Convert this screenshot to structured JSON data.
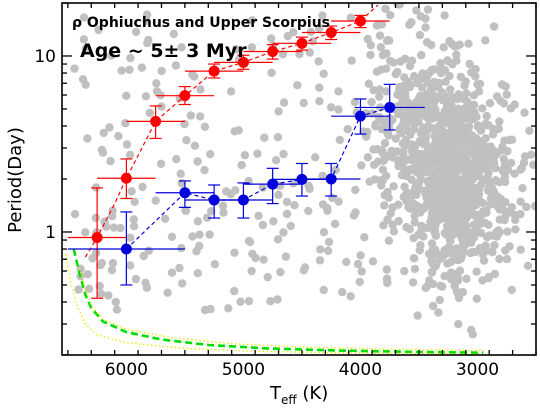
{
  "chart_data": {
    "type": "scatter",
    "title_line1": "ρ Ophiuchus and Upper Scorpius",
    "title_line2": "Age ~ 5± 3 Myr",
    "xlabel_main": "T",
    "xlabel_sub": "eff",
    "xlabel_unit": " (K)",
    "ylabel": "Period(Day)",
    "x_axis": {
      "reversed": true,
      "xlim": [
        6550,
        2500
      ],
      "ticks": [
        6000,
        5000,
        4000,
        3000
      ],
      "tick_labels": [
        "6000",
        "5000",
        "4000",
        "3000"
      ]
    },
    "y_axis": {
      "scale": "log",
      "ylim": [
        0.2,
        20
      ],
      "ticks": [
        1,
        10
      ],
      "tick_labels": [
        "1",
        "10"
      ]
    },
    "colors": {
      "background_points": "#c0c0c0",
      "red_series": "#ff0000",
      "blue_series": "#0000dd",
      "green_curve": "#00dd00",
      "yellow_curve": "#e8e800",
      "frame": "#000000"
    },
    "series": [
      {
        "key": "red",
        "points": [
          {
            "x": 6250,
            "y": 0.93,
            "xerr": 250,
            "ylo": 0.42,
            "yhi": 1.78
          },
          {
            "x": 6000,
            "y": 2.02,
            "xerr": 250,
            "ylo": 1.55,
            "yhi": 2.6
          },
          {
            "x": 5750,
            "y": 4.25,
            "xerr": 250,
            "ylo": 3.4,
            "yhi": 5.2
          },
          {
            "x": 5500,
            "y": 5.95,
            "xerr": 250,
            "ylo": 5.3,
            "yhi": 6.7
          },
          {
            "x": 5250,
            "y": 8.2,
            "xerr": 250,
            "ylo": 7.5,
            "yhi": 9.0
          },
          {
            "x": 5000,
            "y": 9.2,
            "xerr": 250,
            "ylo": 8.4,
            "yhi": 10.1
          },
          {
            "x": 4750,
            "y": 10.6,
            "xerr": 250,
            "ylo": 9.6,
            "yhi": 11.6
          },
          {
            "x": 4500,
            "y": 11.8,
            "xerr": 250,
            "ylo": 10.8,
            "yhi": 12.8
          },
          {
            "x": 4250,
            "y": 13.6,
            "xerr": 250,
            "ylo": 12.4,
            "yhi": 14.8
          },
          {
            "x": 4000,
            "y": 15.8,
            "xerr": 250,
            "ylo": 14.5,
            "yhi": 17.0
          }
        ],
        "trend": [
          [
            6350,
            0.72
          ],
          [
            6250,
            0.93
          ],
          [
            6100,
            1.45
          ],
          [
            6000,
            2.02
          ],
          [
            5750,
            4.25
          ],
          [
            5500,
            5.95
          ],
          [
            5250,
            8.2
          ],
          [
            5000,
            9.2
          ],
          [
            4750,
            10.6
          ],
          [
            4500,
            11.8
          ],
          [
            4250,
            13.6
          ],
          [
            4000,
            15.8
          ],
          [
            3850,
            19.5
          ]
        ]
      },
      {
        "key": "blue",
        "points": [
          {
            "x": 6000,
            "y": 0.8,
            "xerr": 500,
            "ylo": 0.5,
            "yhi": 1.3
          },
          {
            "x": 5500,
            "y": 1.67,
            "xerr": 250,
            "ylo": 1.38,
            "yhi": 1.95
          },
          {
            "x": 5250,
            "y": 1.52,
            "xerr": 250,
            "ylo": 1.2,
            "yhi": 1.85
          },
          {
            "x": 5000,
            "y": 1.52,
            "xerr": 250,
            "ylo": 1.2,
            "yhi": 1.9
          },
          {
            "x": 4750,
            "y": 1.87,
            "xerr": 250,
            "ylo": 1.45,
            "yhi": 2.3
          },
          {
            "x": 4500,
            "y": 1.99,
            "xerr": 250,
            "ylo": 1.6,
            "yhi": 2.45
          },
          {
            "x": 4250,
            "y": 2.0,
            "xerr": 250,
            "ylo": 1.6,
            "yhi": 2.45
          },
          {
            "x": 4000,
            "y": 4.55,
            "xerr": 250,
            "ylo": 3.6,
            "yhi": 5.7
          },
          {
            "x": 3750,
            "y": 5.1,
            "xerr": 300,
            "ylo": 3.8,
            "yhi": 6.9
          }
        ]
      }
    ],
    "model_curves": [
      {
        "key": "green-dashed",
        "points": [
          [
            6450,
            0.8
          ],
          [
            6400,
            0.58
          ],
          [
            6350,
            0.44
          ],
          [
            6300,
            0.37
          ],
          [
            6200,
            0.31
          ],
          [
            6000,
            0.27
          ],
          [
            5700,
            0.245
          ],
          [
            5300,
            0.228
          ],
          [
            4800,
            0.218
          ],
          [
            4200,
            0.212
          ],
          [
            3500,
            0.208
          ],
          [
            2950,
            0.206
          ]
        ]
      },
      {
        "key": "yellow-dotted-upper",
        "points": [
          [
            6400,
            0.62
          ],
          [
            6350,
            0.47
          ],
          [
            6300,
            0.38
          ],
          [
            6200,
            0.32
          ],
          [
            6000,
            0.28
          ],
          [
            5600,
            0.25
          ],
          [
            5100,
            0.232
          ],
          [
            4500,
            0.222
          ],
          [
            3800,
            0.216
          ],
          [
            2950,
            0.212
          ]
        ]
      },
      {
        "key": "yellow-dotted-lower",
        "points": [
          [
            6520,
            0.75
          ],
          [
            6470,
            0.5
          ],
          [
            6420,
            0.38
          ],
          [
            6350,
            0.3
          ],
          [
            6250,
            0.26
          ],
          [
            6000,
            0.235
          ],
          [
            5500,
            0.218
          ],
          [
            4800,
            0.209
          ],
          [
            4000,
            0.205
          ],
          [
            2950,
            0.202
          ]
        ]
      }
    ],
    "background_scatter": {
      "n_points": 1300,
      "components": [
        {
          "weight": 0.55,
          "x_mean": 3250,
          "x_sd": 170,
          "logy_mean": 0.36,
          "logy_sd": 0.32
        },
        {
          "weight": 0.12,
          "x_mean": 3650,
          "x_sd": 170,
          "logy_mean": 0.55,
          "logy_sd": 0.33
        },
        {
          "weight": 0.13,
          "x_mean": 2900,
          "x_sd": 170,
          "logy_mean": 0.25,
          "logy_sd": 0.28
        },
        {
          "weight": 0.2,
          "x_min": 3700,
          "x_max": 6450,
          "logy_min": -0.45,
          "logy_max": 1.25
        }
      ]
    }
  }
}
